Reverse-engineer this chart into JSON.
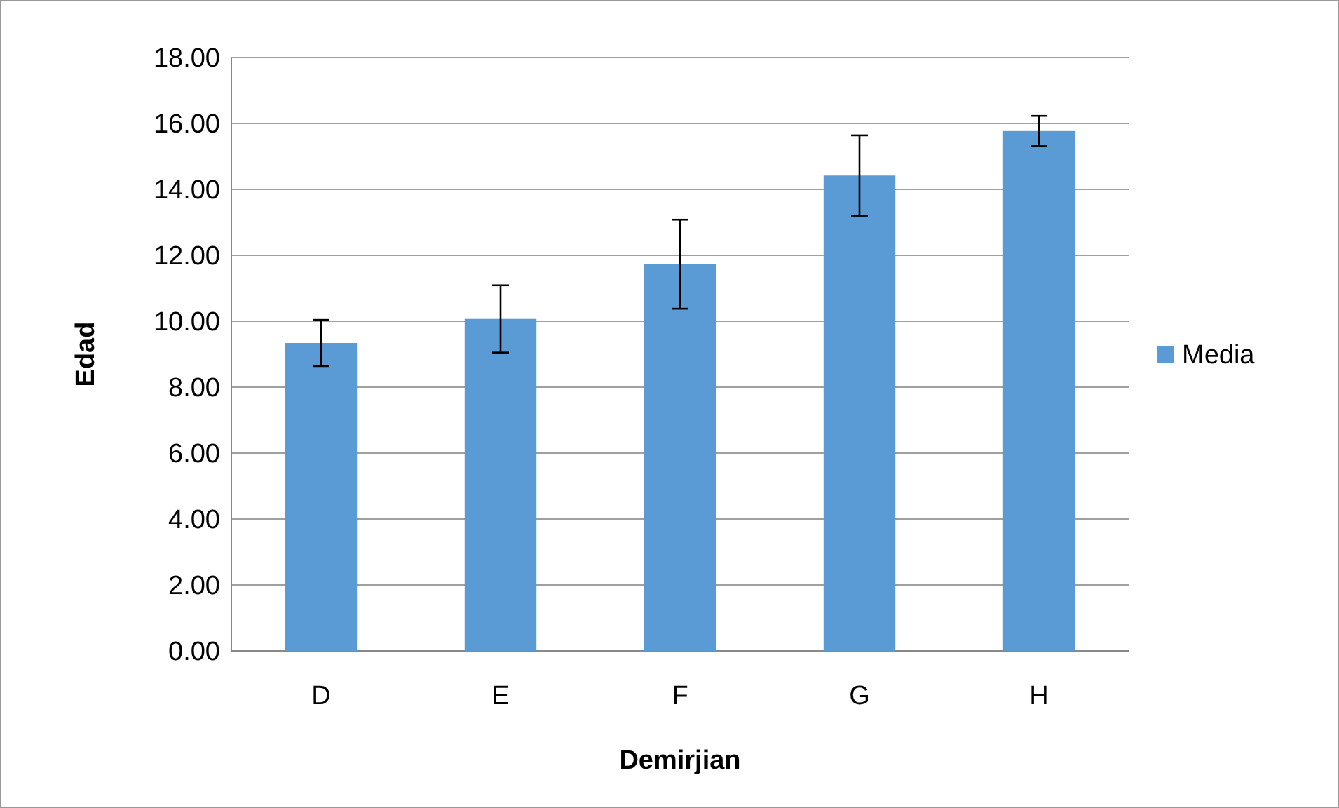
{
  "chart_data": {
    "type": "bar",
    "xlabel": "Demirjian",
    "ylabel": "Edad",
    "categories": [
      "D",
      "E",
      "F",
      "G",
      "H"
    ],
    "series": [
      {
        "name": "Media",
        "color": "#5b9bd5",
        "values": [
          9.34,
          10.07,
          11.73,
          14.42,
          15.77
        ],
        "errors": [
          0.7,
          1.02,
          1.35,
          1.22,
          0.46
        ]
      }
    ],
    "ylim": [
      0,
      18
    ],
    "yticks": [
      {
        "value": 0,
        "label": "0.00"
      },
      {
        "value": 2,
        "label": "2.00"
      },
      {
        "value": 4,
        "label": "4.00"
      },
      {
        "value": 6,
        "label": "6.00"
      },
      {
        "value": 8,
        "label": "8.00"
      },
      {
        "value": 10,
        "label": "10.00"
      },
      {
        "value": 12,
        "label": "12.00"
      },
      {
        "value": 14,
        "label": "14.00"
      },
      {
        "value": 16,
        "label": "16.00"
      },
      {
        "value": 18,
        "label": "18.00"
      }
    ],
    "grid": "y",
    "legend": "right"
  }
}
